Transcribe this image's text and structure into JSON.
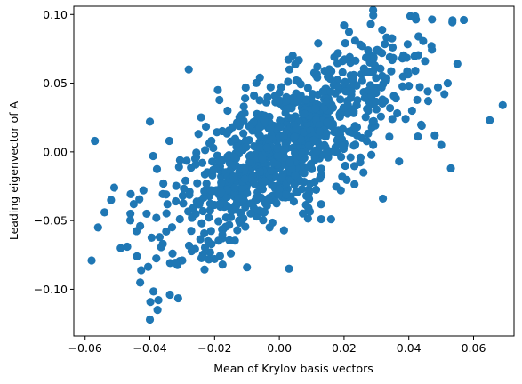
{
  "chart_data": {
    "type": "scatter",
    "title": "",
    "xlabel": "Mean of Krylov basis vectors",
    "ylabel": "Leading eigenvector of A",
    "xlim": [
      -0.0635,
      0.0725
    ],
    "ylim": [
      -0.134,
      0.106
    ],
    "x_ticks": [
      -0.06,
      -0.04,
      -0.02,
      0.0,
      0.02,
      0.04,
      0.06
    ],
    "x_tick_labels": [
      "−0.06",
      "−0.04",
      "−0.02",
      "0.00",
      "0.02",
      "0.04",
      "0.06"
    ],
    "y_ticks": [
      -0.1,
      -0.05,
      0.0,
      0.05,
      0.1
    ],
    "y_tick_labels": [
      "−0.10",
      "−0.05",
      "0.00",
      "0.05",
      "0.10"
    ],
    "grid": false,
    "legend": "none",
    "marker_color": "#1f77b4",
    "approx_total_points": 1000,
    "series": [
      {
        "points": [
          [
            -0.04,
            -0.122
          ],
          [
            -0.058,
            -0.079
          ],
          [
            -0.057,
            0.008
          ],
          [
            -0.056,
            -0.055
          ],
          [
            -0.054,
            -0.044
          ],
          [
            -0.052,
            -0.035
          ],
          [
            -0.051,
            -0.026
          ],
          [
            -0.049,
            -0.07
          ],
          [
            -0.047,
            -0.069
          ],
          [
            -0.046,
            -0.045
          ],
          [
            -0.045,
            -0.038
          ],
          [
            -0.044,
            -0.076
          ],
          [
            -0.043,
            -0.054
          ],
          [
            -0.042,
            -0.028
          ],
          [
            -0.041,
            -0.045
          ],
          [
            -0.04,
            0.022
          ],
          [
            -0.039,
            -0.003
          ],
          [
            -0.038,
            -0.048
          ],
          [
            -0.037,
            -0.062
          ],
          [
            -0.036,
            -0.067
          ],
          [
            -0.035,
            -0.031
          ],
          [
            -0.034,
            0.008
          ],
          [
            -0.033,
            -0.074
          ],
          [
            -0.032,
            -0.036
          ],
          [
            -0.031,
            -0.011
          ],
          [
            -0.03,
            -0.079
          ],
          [
            -0.029,
            -0.021
          ],
          [
            -0.028,
            0.06
          ],
          [
            -0.027,
            -0.048
          ],
          [
            -0.026,
            -0.005
          ],
          [
            -0.025,
            0.013
          ],
          [
            -0.024,
            -0.052
          ],
          [
            -0.023,
            -0.028
          ],
          [
            -0.022,
            -0.065
          ],
          [
            -0.021,
            0.008
          ],
          [
            -0.02,
            -0.078
          ],
          [
            -0.019,
            0.045
          ],
          [
            -0.018,
            -0.018
          ],
          [
            -0.017,
            -0.04
          ],
          [
            -0.016,
            0.03
          ],
          [
            -0.015,
            -0.074
          ],
          [
            -0.014,
            -0.009
          ],
          [
            -0.013,
            -0.057
          ],
          [
            -0.012,
            0.021
          ],
          [
            -0.011,
            -0.032
          ],
          [
            -0.01,
            -0.084
          ],
          [
            -0.009,
            -0.004
          ],
          [
            -0.008,
            0.018
          ],
          [
            -0.007,
            -0.047
          ],
          [
            -0.006,
            0.054
          ],
          [
            -0.005,
            -0.022
          ],
          [
            -0.004,
            0.036
          ],
          [
            -0.003,
            -0.055
          ],
          [
            -0.002,
            0.012
          ],
          [
            -0.001,
            -0.012
          ],
          [
            0.0,
            0.043
          ],
          [
            0.001,
            -0.033
          ],
          [
            0.002,
            0.006
          ],
          [
            0.003,
            -0.085
          ],
          [
            0.004,
            0.024
          ],
          [
            0.005,
            -0.008
          ],
          [
            0.006,
            0.051
          ],
          [
            0.007,
            -0.027
          ],
          [
            0.008,
            0.014
          ],
          [
            0.009,
            -0.041
          ],
          [
            0.01,
            0.035
          ],
          [
            0.011,
            0.001
          ],
          [
            0.012,
            0.079
          ],
          [
            0.013,
            -0.017
          ],
          [
            0.014,
            0.059
          ],
          [
            0.015,
            0.022
          ],
          [
            0.016,
            -0.049
          ],
          [
            0.017,
            0.069
          ],
          [
            0.018,
            0.009
          ],
          [
            0.019,
            -0.028
          ],
          [
            0.02,
            0.092
          ],
          [
            0.021,
            0.037
          ],
          [
            0.022,
            -0.004
          ],
          [
            0.023,
            0.056
          ],
          [
            0.024,
            0.018
          ],
          [
            0.025,
            0.078
          ],
          [
            0.026,
            -0.015
          ],
          [
            0.027,
            0.044
          ],
          [
            0.028,
            0.065
          ],
          [
            0.029,
            0.005
          ],
          [
            0.03,
            0.031
          ],
          [
            0.031,
            0.073
          ],
          [
            0.032,
            -0.034
          ],
          [
            0.033,
            0.052
          ],
          [
            0.034,
            0.011
          ],
          [
            0.035,
            0.076
          ],
          [
            0.036,
            0.039
          ],
          [
            0.037,
            -0.007
          ],
          [
            0.038,
            0.068
          ],
          [
            0.039,
            0.024
          ],
          [
            0.04,
            0.048
          ],
          [
            0.041,
            0.03
          ],
          [
            0.042,
            0.059
          ],
          [
            0.043,
            0.084
          ],
          [
            0.044,
            0.019
          ],
          [
            0.045,
            0.066
          ],
          [
            0.046,
            0.037
          ],
          [
            0.047,
            0.077
          ],
          [
            0.048,
            0.012
          ],
          [
            0.049,
            0.047
          ],
          [
            0.05,
            0.005
          ],
          [
            0.051,
            0.042
          ],
          [
            0.052,
            0.05
          ],
          [
            0.053,
            -0.012
          ],
          [
            0.055,
            0.064
          ],
          [
            0.057,
            0.096
          ],
          [
            0.065,
            0.023
          ],
          [
            0.069,
            0.034
          ]
        ]
      }
    ]
  }
}
